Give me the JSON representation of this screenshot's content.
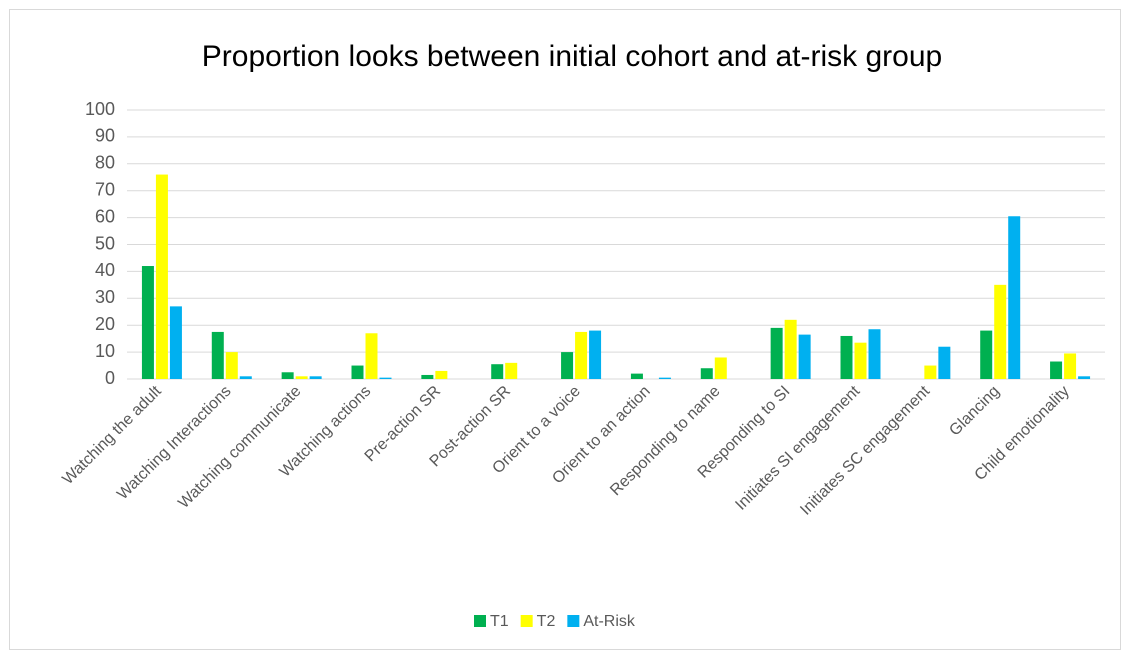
{
  "chart_data": {
    "type": "bar",
    "title": "Proportion looks between initial cohort and at-risk group",
    "categories": [
      "Watching the adult",
      "Watching Interactions",
      "Watching communicate",
      "Watching actions",
      "Pre-action SR",
      "Post-action SR",
      "Orient to a voice",
      "Orient to an action",
      "Responding to name",
      "Responding to SI",
      "Initiates SI engagement",
      "Initiates SC engagement",
      "Glancing",
      "Child emotionality"
    ],
    "series": [
      {
        "name": "T1",
        "color": "#00b050",
        "values": [
          42,
          17.5,
          2.5,
          5,
          1.5,
          5.5,
          10,
          2,
          4,
          19,
          16,
          0,
          18,
          6.5
        ]
      },
      {
        "name": "T2",
        "color": "#ffff00",
        "values": [
          76,
          10,
          1,
          17,
          3,
          6,
          17.5,
          0,
          8,
          22,
          13.5,
          5,
          35,
          9.5
        ]
      },
      {
        "name": "At-Risk",
        "color": "#00b0f0",
        "values": [
          27,
          1,
          1,
          0.5,
          0,
          0,
          18,
          0.5,
          0,
          16.5,
          18.5,
          12,
          60.5,
          1
        ]
      }
    ],
    "ylim": [
      0,
      100
    ],
    "yticks": [
      0,
      10,
      20,
      30,
      40,
      50,
      60,
      70,
      80,
      90,
      100
    ],
    "grid": true,
    "legend": "bottom"
  }
}
